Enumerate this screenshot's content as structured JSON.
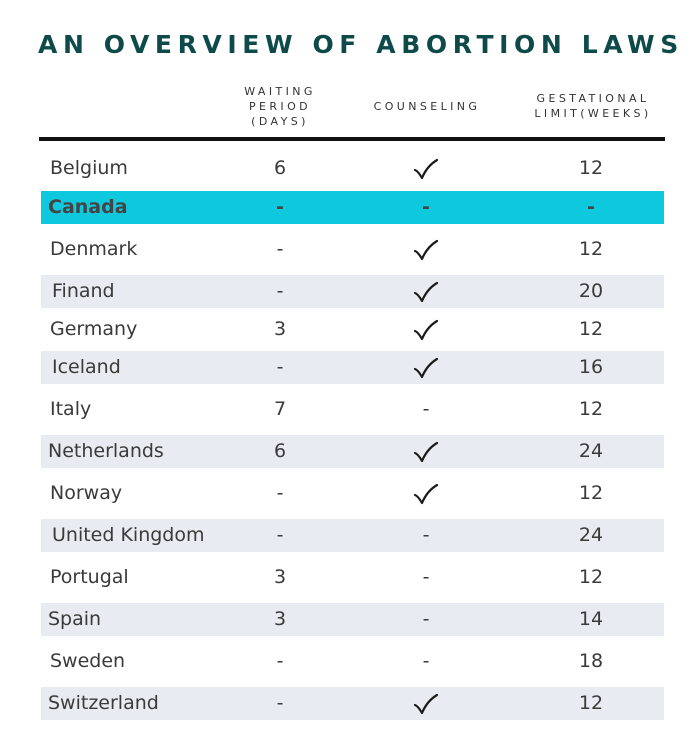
{
  "title": "AN OVERVIEW OF ABORTION LAWS",
  "headers": {
    "waiting_period": [
      "WAITING",
      "PERIOD",
      "(DAYS)"
    ],
    "counseling": [
      "COUNSELING"
    ],
    "gestational_limit": [
      "GESTATIONAL",
      "LIMIT(WEEKS)"
    ]
  },
  "rows": [
    {
      "country": "Belgium",
      "waiting": "6",
      "counseling": "check",
      "limit": "12",
      "style": "plain"
    },
    {
      "country": "Canada",
      "waiting": "-",
      "counseling": "-",
      "limit": "-",
      "style": "highlight"
    },
    {
      "country": "Denmark",
      "waiting": "-",
      "counseling": "check",
      "limit": "12",
      "style": "plain"
    },
    {
      "country": "Finand",
      "waiting": "-",
      "counseling": "check",
      "limit": "20",
      "style": "shaded"
    },
    {
      "country": "Germany",
      "waiting": "3",
      "counseling": "check",
      "limit": "12",
      "style": "plain"
    },
    {
      "country": "Iceland",
      "waiting": "-",
      "counseling": "check",
      "limit": "16",
      "style": "shaded"
    },
    {
      "country": "Italy",
      "waiting": "7",
      "counseling": "-",
      "limit": "12",
      "style": "plain"
    },
    {
      "country": "Netherlands",
      "waiting": "6",
      "counseling": "check",
      "limit": "24",
      "style": "shaded"
    },
    {
      "country": "Norway",
      "waiting": "-",
      "counseling": "check",
      "limit": "12",
      "style": "plain"
    },
    {
      "country": "United Kingdom",
      "waiting": "-",
      "counseling": "-",
      "limit": "24",
      "style": "shaded"
    },
    {
      "country": "Portugal",
      "waiting": "3",
      "counseling": "-",
      "limit": "12",
      "style": "plain"
    },
    {
      "country": "Spain",
      "waiting": "3",
      "counseling": "-",
      "limit": "14",
      "style": "shaded"
    },
    {
      "country": "Sweden",
      "waiting": "-",
      "counseling": "-",
      "limit": "18",
      "style": "plain"
    },
    {
      "country": "Switzerland",
      "waiting": "-",
      "counseling": "check",
      "limit": "12",
      "style": "shaded"
    }
  ],
  "colors": {
    "title": "#0e4a4a",
    "highlight": "#0ec9de",
    "shade": "#e8ebf1",
    "rule": "#111111"
  }
}
